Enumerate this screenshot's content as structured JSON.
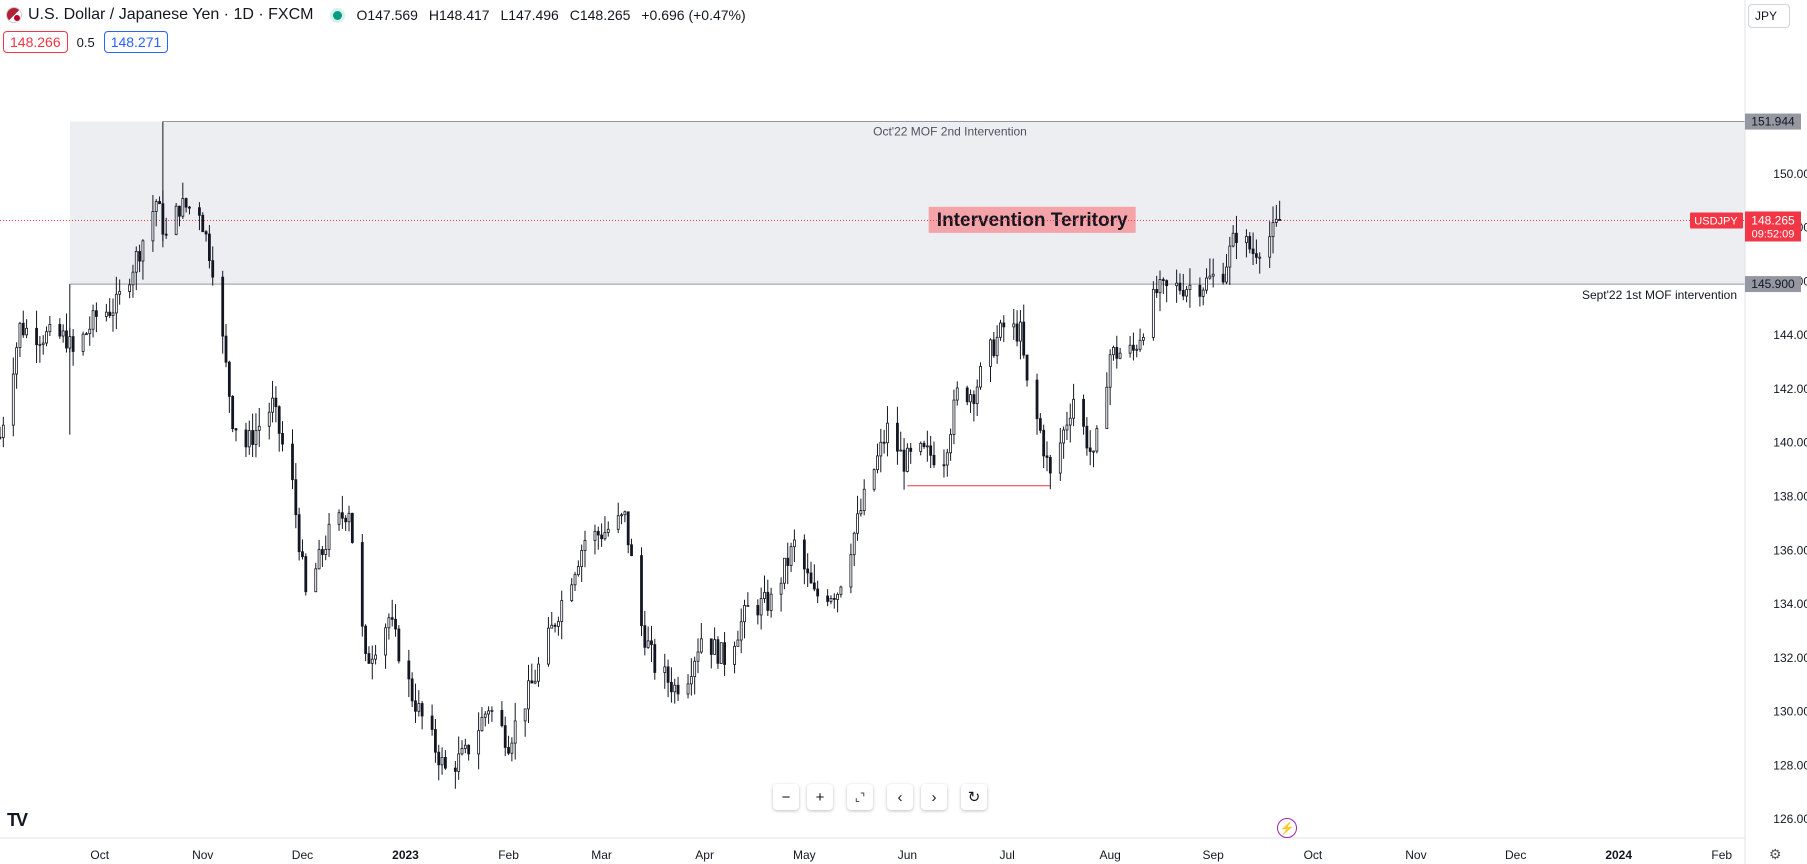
{
  "header": {
    "symbol_title": "U.S. Dollar / Japanese Yen · 1D · FXCM",
    "open": "O147.569",
    "high": "H148.417",
    "low": "L147.496",
    "close": "C148.265",
    "change": "+0.696 (+0.47%)"
  },
  "quote": {
    "bid": "148.266",
    "spread": "0.5",
    "ask": "148.271"
  },
  "currency_button": "JPY",
  "price_label": {
    "symbol": "USDJPY",
    "price": "148.265",
    "countdown": "09:52:09"
  },
  "colors": {
    "accent": "#f23645",
    "zone_fill": "#eceef2",
    "candle": "#131722",
    "label_bg": "#f4a3a8",
    "level_tag": "#9598a1"
  },
  "icons": [
    "zoom-out-icon",
    "zoom-in-icon",
    "reset-scale-icon",
    "scroll-left-icon",
    "scroll-right-icon",
    "refresh-icon",
    "tradingview-logo-icon",
    "bolt-icon",
    "gear-icon"
  ],
  "chart_data": {
    "type": "candlestick",
    "title": "U.S. Dollar / Japanese Yen · 1D · FXCM",
    "ylim": [
      125.3,
      155.2
    ],
    "y_ticks": [
      126,
      128,
      130,
      132,
      134,
      136,
      138,
      140,
      142,
      144,
      146,
      148,
      150
    ],
    "y_tick_labels": [
      "126.000",
      "128.000",
      "130.000",
      "132.000",
      "134.000",
      "136.000",
      "138.000",
      "140.000",
      "142.000",
      "144.000",
      "146.000",
      "148.000",
      "150.000"
    ],
    "x_labels": [
      {
        "label": "Oct",
        "date": "2022-10-01"
      },
      {
        "label": "Nov",
        "date": "2022-11-01"
      },
      {
        "label": "Dec",
        "date": "2022-12-01"
      },
      {
        "label": "2023",
        "date": "2023-01-01",
        "bold": true
      },
      {
        "label": "Feb",
        "date": "2023-02-01"
      },
      {
        "label": "Mar",
        "date": "2023-03-01"
      },
      {
        "label": "Apr",
        "date": "2023-04-01"
      },
      {
        "label": "May",
        "date": "2023-05-01"
      },
      {
        "label": "Jun",
        "date": "2023-06-01"
      },
      {
        "label": "Jul",
        "date": "2023-07-01"
      },
      {
        "label": "Aug",
        "date": "2023-08-01"
      },
      {
        "label": "Sep",
        "date": "2023-09-01"
      },
      {
        "label": "Oct",
        "date": "2023-10-01"
      },
      {
        "label": "Nov",
        "date": "2023-11-01"
      },
      {
        "label": "Dec",
        "date": "2023-12-01"
      },
      {
        "label": "2024",
        "date": "2024-01-01",
        "bold": true
      },
      {
        "label": "Feb",
        "date": "2024-02-01"
      }
    ],
    "x_range": [
      "2022-09-01",
      "2024-02-08"
    ],
    "levels": [
      {
        "value": 151.944,
        "label": "151.944",
        "note": "Oct'22 MOF 2nd Intervention"
      },
      {
        "value": 145.9,
        "label": "145.900",
        "note": "Sept'22 1st MOF intervention"
      }
    ],
    "zone": {
      "from_date": "2022-09-22",
      "to_date": "2024-02-08",
      "low": 145.9,
      "high": 151.944,
      "label": "Intervention Territory"
    },
    "current_price": 148.265,
    "support_segment": {
      "from_date": "2023-06-01",
      "to_date": "2023-07-14",
      "value": 138.4
    },
    "path": [
      [
        "2022-09-01",
        140.2
      ],
      [
        "2022-09-07",
        144.3
      ],
      [
        "2022-09-13",
        144.0
      ],
      [
        "2022-09-21",
        143.9
      ],
      [
        "2022-09-23",
        143.3
      ],
      [
        "2022-09-30",
        144.7
      ],
      [
        "2022-10-06",
        145.1
      ],
      [
        "2022-10-13",
        147.2
      ],
      [
        "2022-10-18",
        149.0
      ],
      [
        "2022-10-21",
        147.6
      ],
      [
        "2022-10-25",
        148.8
      ],
      [
        "2022-10-31",
        148.7
      ],
      [
        "2022-11-04",
        146.6
      ],
      [
        "2022-11-10",
        140.9
      ],
      [
        "2022-11-14",
        139.9
      ],
      [
        "2022-11-22",
        141.4
      ],
      [
        "2022-11-28",
        138.4
      ],
      [
        "2022-12-02",
        134.3
      ],
      [
        "2022-12-09",
        136.6
      ],
      [
        "2022-12-15",
        137.6
      ],
      [
        "2022-12-20",
        131.8
      ],
      [
        "2022-12-27",
        133.5
      ],
      [
        "2023-01-03",
        130.6
      ],
      [
        "2023-01-13",
        127.8
      ],
      [
        "2023-01-19",
        128.4
      ],
      [
        "2023-01-26",
        130.2
      ],
      [
        "2023-02-01",
        128.9
      ],
      [
        "2023-02-09",
        131.3
      ],
      [
        "2023-02-17",
        134.1
      ],
      [
        "2023-02-24",
        136.4
      ],
      [
        "2023-03-02",
        136.7
      ],
      [
        "2023-03-08",
        137.2
      ],
      [
        "2023-03-13",
        133.2
      ],
      [
        "2023-03-17",
        131.7
      ],
      [
        "2023-03-23",
        130.9
      ],
      [
        "2023-03-27",
        131.4
      ],
      [
        "2023-03-31",
        132.8
      ],
      [
        "2023-04-07",
        132.0
      ],
      [
        "2023-04-14",
        133.8
      ],
      [
        "2023-04-21",
        134.1
      ],
      [
        "2023-04-28",
        136.2
      ],
      [
        "2023-05-04",
        134.3
      ],
      [
        "2023-05-11",
        134.5
      ],
      [
        "2023-05-19",
        137.9
      ],
      [
        "2023-05-26",
        140.5
      ],
      [
        "2023-05-31",
        139.3
      ],
      [
        "2023-06-05",
        139.6
      ],
      [
        "2023-06-12",
        139.5
      ],
      [
        "2023-06-16",
        141.8
      ],
      [
        "2023-06-21",
        141.9
      ],
      [
        "2023-06-26",
        143.4
      ],
      [
        "2023-06-30",
        144.3
      ],
      [
        "2023-07-05",
        144.1
      ],
      [
        "2023-07-07",
        142.1
      ],
      [
        "2023-07-11",
        140.4
      ],
      [
        "2023-07-14",
        138.7
      ],
      [
        "2023-07-21",
        141.7
      ],
      [
        "2023-07-27",
        139.3
      ],
      [
        "2023-08-01",
        143.3
      ],
      [
        "2023-08-08",
        143.4
      ],
      [
        "2023-08-15",
        145.6
      ],
      [
        "2023-08-22",
        145.8
      ],
      [
        "2023-08-29",
        145.9
      ],
      [
        "2023-09-04",
        146.4
      ],
      [
        "2023-09-08",
        147.8
      ],
      [
        "2023-09-13",
        147.1
      ],
      [
        "2023-09-19",
        147.8
      ],
      [
        "2023-09-21",
        148.26
      ]
    ],
    "grid": false,
    "legend": "none"
  }
}
